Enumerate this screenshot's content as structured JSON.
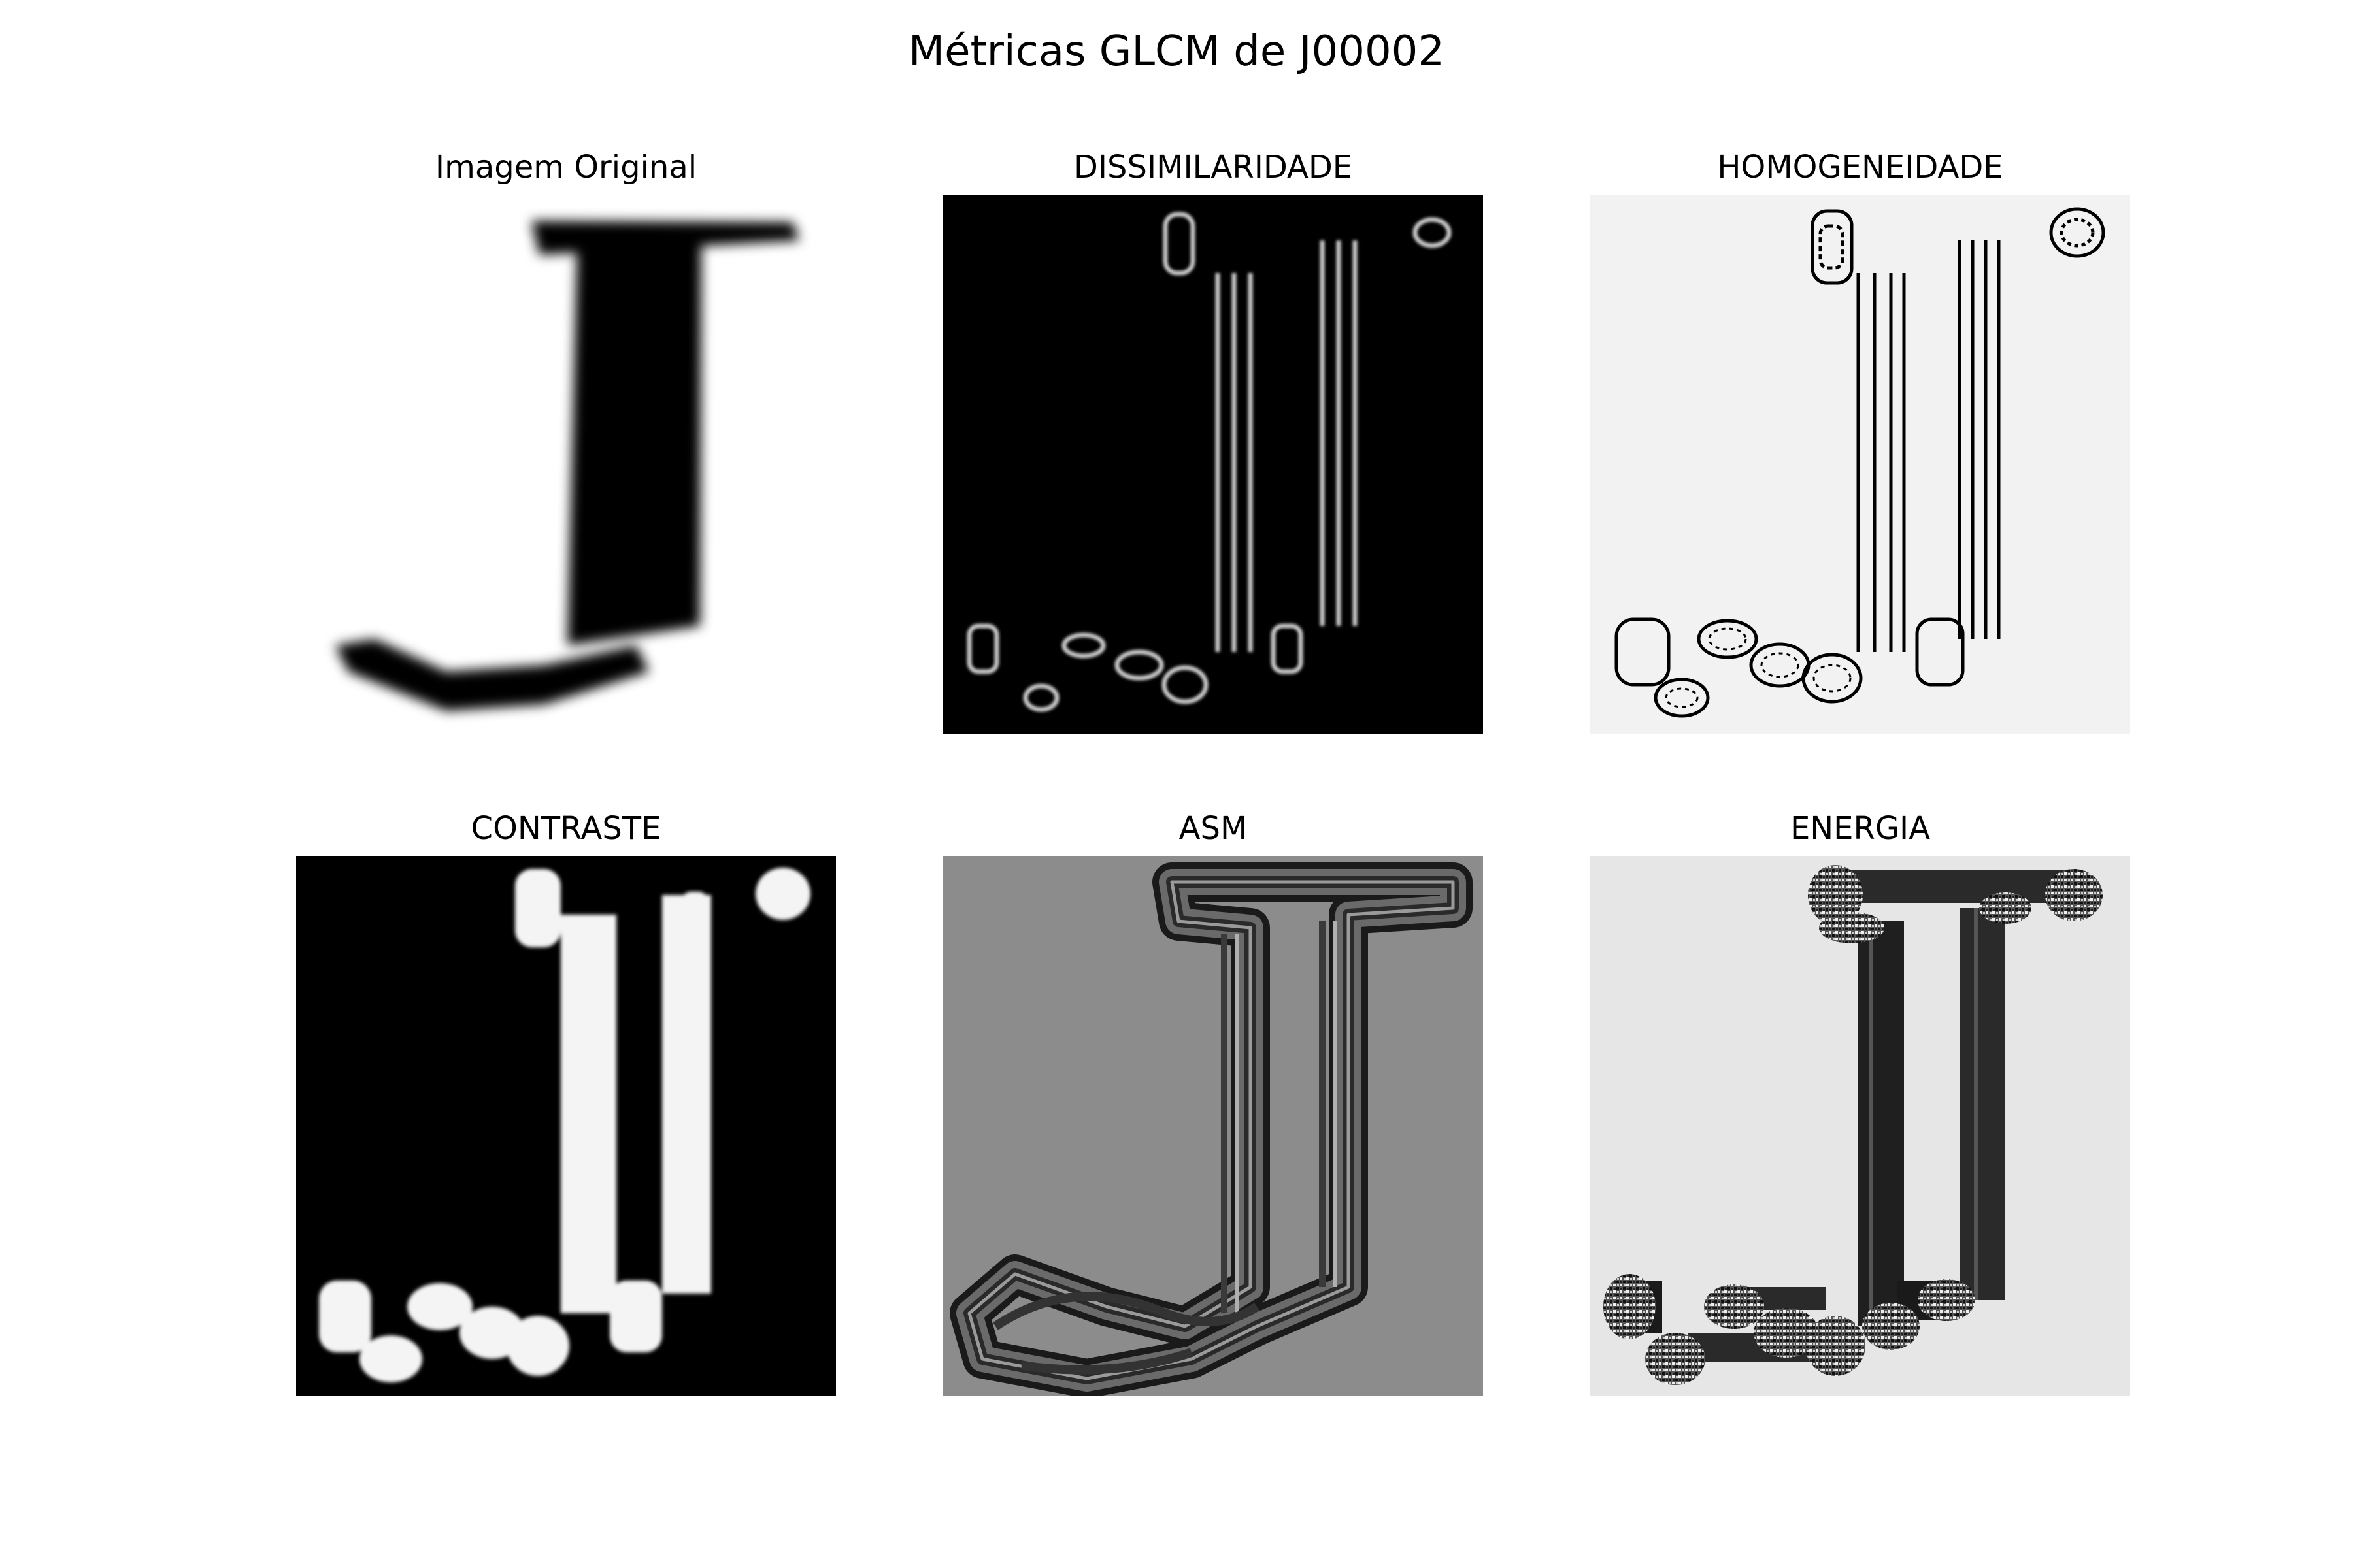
{
  "figure": {
    "title": "Métricas GLCM de J00002"
  },
  "panels": [
    {
      "title": "Imagem Original",
      "colormap": "gray",
      "background": "#ffffff"
    },
    {
      "title": "DISSIMILARIDADE",
      "colormap": "gray",
      "background": "#000000"
    },
    {
      "title": "HOMOGENEIDADE",
      "colormap": "gray",
      "background": "#f2f2f2"
    },
    {
      "title": "CONTRASTE",
      "colormap": "gray",
      "background": "#000000"
    },
    {
      "title": "ASM",
      "colormap": "gray",
      "background": "#8c8c8c"
    },
    {
      "title": "ENERGIA",
      "colormap": "gray",
      "background": "#e6e6e6"
    }
  ]
}
